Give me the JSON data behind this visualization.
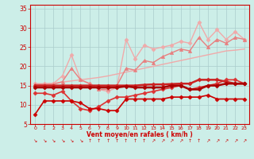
{
  "bg_color": "#cceee8",
  "grid_color": "#aacccc",
  "xlabel": "Vent moyen/en rafales ( km/h )",
  "xlim": [
    -0.5,
    23.5
  ],
  "ylim": [
    5,
    36
  ],
  "yticks": [
    5,
    10,
    15,
    20,
    25,
    30,
    35
  ],
  "xticks": [
    0,
    1,
    2,
    3,
    4,
    5,
    6,
    7,
    8,
    9,
    10,
    11,
    12,
    13,
    14,
    15,
    16,
    17,
    18,
    19,
    20,
    21,
    22,
    23
  ],
  "series": [
    {
      "x": [
        0,
        1,
        2,
        3,
        4,
        5,
        6,
        7,
        8,
        9,
        10,
        11,
        12,
        13,
        14,
        15,
        16,
        17,
        18,
        19,
        20,
        21,
        22,
        23
      ],
      "y": [
        15.2,
        15.4,
        15.6,
        15.9,
        16.2,
        16.5,
        16.8,
        17.1,
        17.5,
        18.0,
        18.5,
        19.0,
        19.5,
        20.0,
        20.5,
        21.0,
        21.5,
        22.0,
        22.5,
        23.0,
        23.5,
        24.0,
        24.2,
        24.5
      ],
      "color": "#f0aaaa",
      "lw": 1.0,
      "marker": null
    },
    {
      "x": [
        0,
        1,
        2,
        3,
        4,
        5,
        6,
        7,
        8,
        9,
        10,
        11,
        12,
        13,
        14,
        15,
        16,
        17,
        18,
        19,
        20,
        21,
        22,
        23
      ],
      "y": [
        15.5,
        15.5,
        15.5,
        17.5,
        23.0,
        16.5,
        15.5,
        14.0,
        13.5,
        14.5,
        27.0,
        22.0,
        25.5,
        24.5,
        25.0,
        25.5,
        26.5,
        26.0,
        31.5,
        27.0,
        29.5,
        27.0,
        29.0,
        27.0
      ],
      "color": "#f0aaaa",
      "lw": 1.0,
      "marker": "D",
      "markersize": 2.5
    },
    {
      "x": [
        0,
        1,
        2,
        3,
        4,
        5,
        6,
        7,
        8,
        9,
        10,
        11,
        12,
        13,
        14,
        15,
        16,
        17,
        18,
        19,
        20,
        21,
        22,
        23
      ],
      "y": [
        15.3,
        15.3,
        15.3,
        16.0,
        19.5,
        16.5,
        15.5,
        14.0,
        14.0,
        15.0,
        19.5,
        19.0,
        21.5,
        21.0,
        22.5,
        23.5,
        24.5,
        24.0,
        27.5,
        25.0,
        27.0,
        26.0,
        27.5,
        27.0
      ],
      "color": "#e88080",
      "lw": 1.0,
      "marker": "^",
      "markersize": 3.0
    },
    {
      "x": [
        0,
        1,
        2,
        3,
        4,
        5,
        6,
        7,
        8,
        9,
        10,
        11,
        12,
        13,
        14,
        15,
        16,
        17,
        18,
        19,
        20,
        21,
        22,
        23
      ],
      "y": [
        13.0,
        13.0,
        12.5,
        13.5,
        11.0,
        9.0,
        8.5,
        9.5,
        11.0,
        12.0,
        12.0,
        12.5,
        13.0,
        13.5,
        14.0,
        14.5,
        15.0,
        14.0,
        14.5,
        15.0,
        15.5,
        16.5,
        16.5,
        15.5
      ],
      "color": "#dd3333",
      "lw": 1.2,
      "marker": "D",
      "markersize": 2.5
    },
    {
      "x": [
        0,
        1,
        2,
        3,
        4,
        5,
        6,
        7,
        8,
        9,
        10,
        11,
        12,
        13,
        14,
        15,
        16,
        17,
        18,
        19,
        20,
        21,
        22,
        23
      ],
      "y": [
        7.5,
        11.0,
        11.0,
        11.0,
        11.0,
        10.5,
        9.0,
        9.0,
        8.5,
        8.5,
        11.5,
        11.5,
        11.5,
        11.5,
        11.5,
        12.0,
        12.0,
        12.0,
        12.0,
        12.5,
        11.5,
        11.5,
        11.5,
        11.5
      ],
      "color": "#cc0000",
      "lw": 1.2,
      "marker": "D",
      "markersize": 2.5
    },
    {
      "x": [
        0,
        1,
        2,
        3,
        4,
        5,
        6,
        7,
        8,
        9,
        10,
        11,
        12,
        13,
        14,
        15,
        16,
        17,
        18,
        19,
        20,
        21,
        22,
        23
      ],
      "y": [
        15.0,
        15.0,
        15.0,
        15.0,
        15.0,
        15.0,
        15.0,
        15.0,
        15.0,
        15.0,
        15.0,
        15.0,
        15.2,
        15.3,
        15.3,
        15.4,
        15.5,
        15.5,
        16.5,
        16.5,
        16.5,
        16.0,
        15.5,
        15.5
      ],
      "color": "#cc2222",
      "lw": 1.8,
      "marker": "D",
      "markersize": 2.5
    },
    {
      "x": [
        0,
        1,
        2,
        3,
        4,
        5,
        6,
        7,
        8,
        9,
        10,
        11,
        12,
        13,
        14,
        15,
        16,
        17,
        18,
        19,
        20,
        21,
        22,
        23
      ],
      "y": [
        14.5,
        14.5,
        14.5,
        14.5,
        14.5,
        14.5,
        14.5,
        14.5,
        14.5,
        14.5,
        14.8,
        14.5,
        14.5,
        14.5,
        14.5,
        15.0,
        15.0,
        14.0,
        14.0,
        15.0,
        15.0,
        15.5,
        15.5,
        15.5
      ],
      "color": "#aa0000",
      "lw": 1.8,
      "marker": "D",
      "markersize": 2.5
    }
  ],
  "arrows": [
    "↘",
    "↘",
    "↘",
    "↘",
    "↘",
    "↘",
    "↑",
    "↑",
    "↑",
    "↑",
    "↑",
    "↑",
    "↑",
    "↗",
    "↗",
    "↗",
    "↗",
    "↑",
    "↑",
    "↗",
    "↗",
    "↗",
    "↗",
    "↗"
  ]
}
